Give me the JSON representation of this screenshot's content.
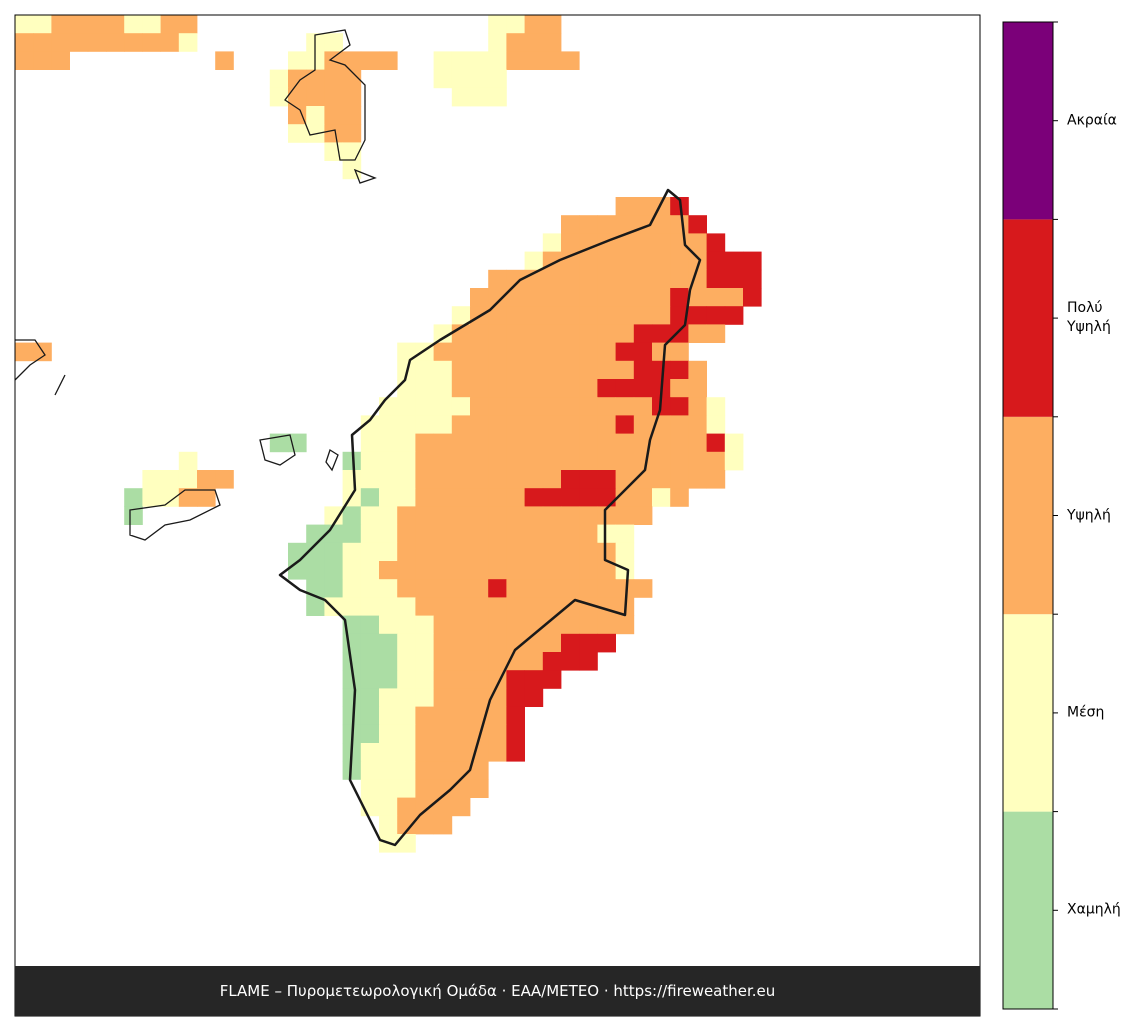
{
  "legend": {
    "labels": [
      "Χαμηλή",
      "Μέση",
      "Υψηλή",
      "Πολύ Υψηλή",
      "Ακραία"
    ],
    "colors": [
      "#abdda4",
      "#ffffbf",
      "#fdae61",
      "#d7191c",
      "#7b0079"
    ]
  },
  "footer": "FLAME – Πυρομετεωρολογική Ομάδα · ΕΑΑ/METEO · https://fireweather.eu"
}
